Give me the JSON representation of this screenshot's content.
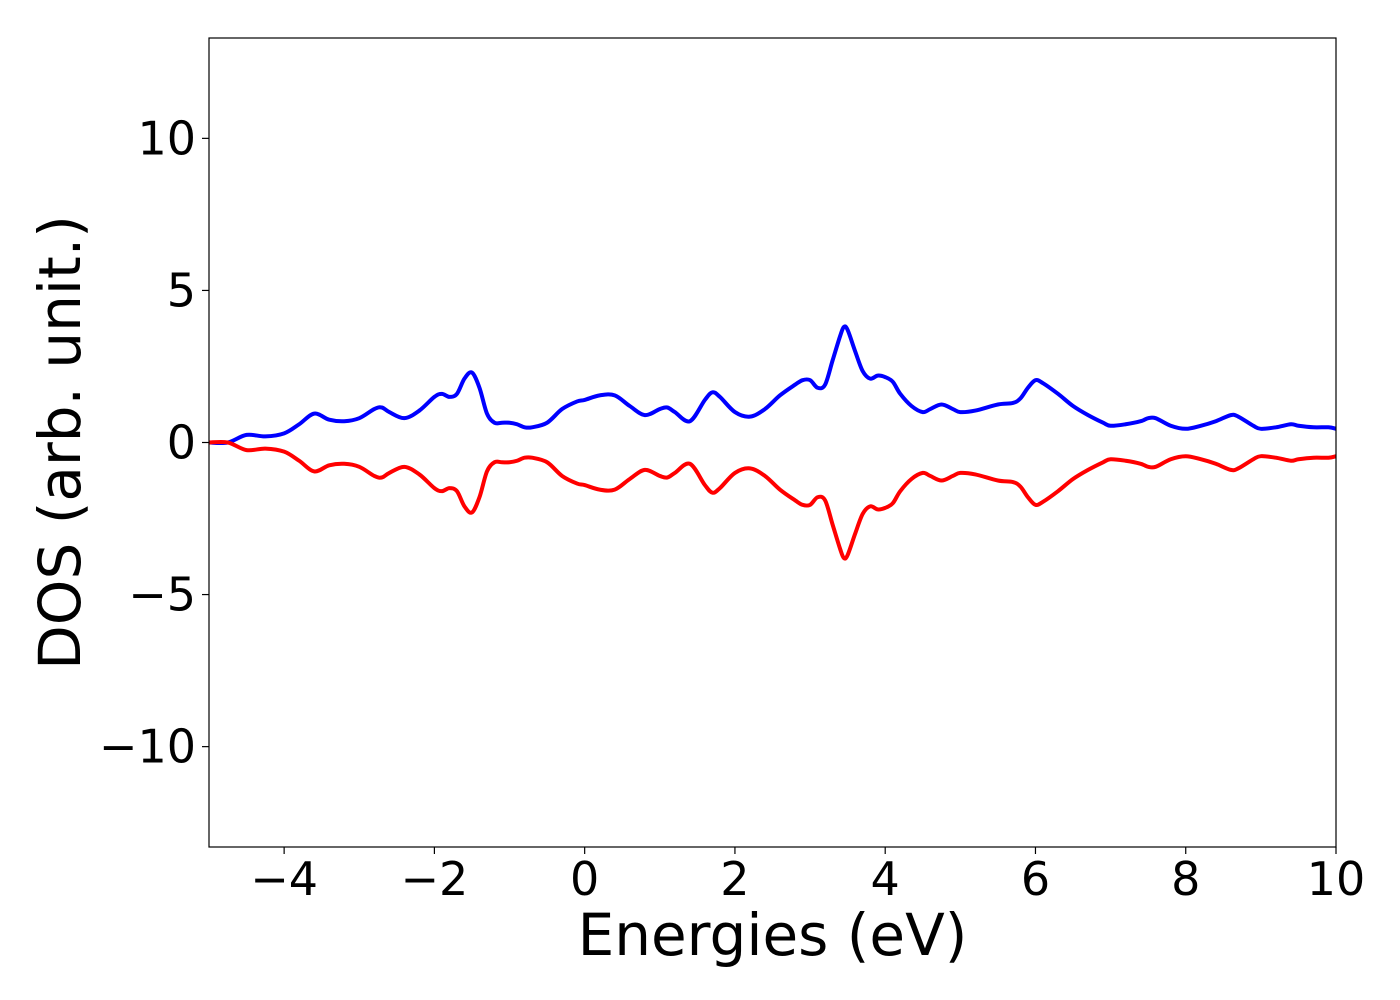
{
  "chart_data": {
    "type": "line",
    "title": "",
    "xlabel": "Energies (eV)",
    "ylabel": "DOS (arb. unit.)",
    "xlim": [
      -5,
      10
    ],
    "ylim": [
      -13.3,
      13.3
    ],
    "xticks": [
      -4,
      -2,
      0,
      2,
      4,
      6,
      8,
      10
    ],
    "yticks": [
      -10,
      -5,
      0,
      5,
      10
    ],
    "xtick_labels": [
      "−4",
      "−2",
      "0",
      "2",
      "4",
      "6",
      "8",
      "10"
    ],
    "ytick_labels": [
      "−10",
      "−5",
      "0",
      "5",
      "10"
    ],
    "grid": false,
    "legend": null,
    "x": [
      -5.0,
      -4.75,
      -4.5,
      -4.25,
      -4.0,
      -3.8,
      -3.6,
      -3.4,
      -3.2,
      -3.0,
      -2.8,
      -2.7,
      -2.6,
      -2.4,
      -2.2,
      -2.0,
      -1.9,
      -1.8,
      -1.7,
      -1.6,
      -1.5,
      -1.4,
      -1.3,
      -1.2,
      -1.1,
      -1.0,
      -0.9,
      -0.8,
      -0.7,
      -0.5,
      -0.3,
      -0.1,
      0.0,
      0.2,
      0.4,
      0.6,
      0.8,
      1.0,
      1.1,
      1.2,
      1.4,
      1.6,
      1.7,
      1.8,
      2.0,
      2.2,
      2.4,
      2.6,
      2.8,
      2.9,
      3.0,
      3.1,
      3.2,
      3.3,
      3.4,
      3.45,
      3.5,
      3.6,
      3.7,
      3.8,
      3.9,
      4.0,
      4.1,
      4.2,
      4.35,
      4.5,
      4.6,
      4.75,
      4.9,
      5.0,
      5.2,
      5.5,
      5.7,
      5.8,
      5.9,
      6.0,
      6.1,
      6.3,
      6.5,
      6.7,
      6.9,
      7.0,
      7.2,
      7.4,
      7.5,
      7.6,
      7.8,
      8.0,
      8.2,
      8.4,
      8.6,
      8.7,
      8.9,
      9.0,
      9.2,
      9.4,
      9.5,
      9.7,
      9.9,
      10.0
    ],
    "series": [
      {
        "color": "#0000ff",
        "values": [
          0.0,
          0.0,
          0.25,
          0.2,
          0.3,
          0.6,
          0.95,
          0.75,
          0.7,
          0.8,
          1.1,
          1.15,
          1.0,
          0.8,
          1.05,
          1.5,
          1.6,
          1.5,
          1.6,
          2.1,
          2.3,
          1.8,
          0.95,
          0.65,
          0.65,
          0.65,
          0.6,
          0.5,
          0.5,
          0.65,
          1.1,
          1.35,
          1.4,
          1.55,
          1.55,
          1.2,
          0.9,
          1.1,
          1.15,
          1.0,
          0.7,
          1.4,
          1.65,
          1.5,
          1.0,
          0.85,
          1.1,
          1.55,
          1.9,
          2.05,
          2.05,
          1.8,
          1.9,
          2.7,
          3.5,
          3.8,
          3.7,
          3.0,
          2.35,
          2.1,
          2.2,
          2.15,
          2.0,
          1.6,
          1.2,
          1.0,
          1.1,
          1.25,
          1.1,
          1.0,
          1.05,
          1.25,
          1.3,
          1.45,
          1.8,
          2.05,
          1.95,
          1.6,
          1.2,
          0.9,
          0.65,
          0.55,
          0.6,
          0.7,
          0.8,
          0.8,
          0.55,
          0.45,
          0.55,
          0.7,
          0.9,
          0.85,
          0.55,
          0.45,
          0.5,
          0.6,
          0.55,
          0.5,
          0.5,
          0.45
        ]
      },
      {
        "color": "#ff0000",
        "values": [
          0.0,
          0.0,
          -0.25,
          -0.2,
          -0.3,
          -0.6,
          -0.95,
          -0.75,
          -0.7,
          -0.8,
          -1.1,
          -1.15,
          -1.0,
          -0.8,
          -1.05,
          -1.5,
          -1.6,
          -1.5,
          -1.6,
          -2.1,
          -2.3,
          -1.8,
          -0.95,
          -0.65,
          -0.65,
          -0.65,
          -0.6,
          -0.5,
          -0.5,
          -0.65,
          -1.1,
          -1.35,
          -1.4,
          -1.55,
          -1.55,
          -1.2,
          -0.9,
          -1.1,
          -1.15,
          -1.0,
          -0.7,
          -1.4,
          -1.65,
          -1.5,
          -1.0,
          -0.85,
          -1.1,
          -1.55,
          -1.9,
          -2.05,
          -2.05,
          -1.8,
          -1.9,
          -2.7,
          -3.5,
          -3.8,
          -3.7,
          -3.0,
          -2.35,
          -2.1,
          -2.2,
          -2.15,
          -2.0,
          -1.6,
          -1.2,
          -1.0,
          -1.1,
          -1.25,
          -1.1,
          -1.0,
          -1.05,
          -1.25,
          -1.3,
          -1.45,
          -1.8,
          -2.05,
          -1.95,
          -1.6,
          -1.2,
          -0.9,
          -0.65,
          -0.55,
          -0.6,
          -0.7,
          -0.8,
          -0.8,
          -0.55,
          -0.45,
          -0.55,
          -0.7,
          -0.9,
          -0.85,
          -0.55,
          -0.45,
          -0.5,
          -0.6,
          -0.55,
          -0.5,
          -0.5,
          -0.45
        ]
      }
    ]
  }
}
